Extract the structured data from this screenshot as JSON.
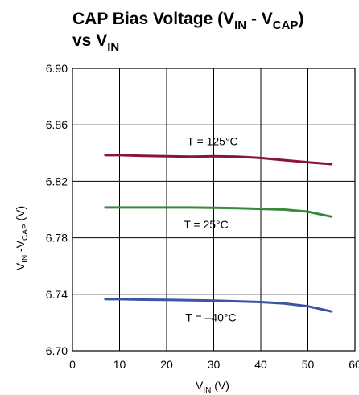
{
  "chart_data": {
    "type": "line",
    "title": {
      "line1_a": "CAP Bias Voltage (V",
      "line1_sub1": "IN",
      "line1_b": " - V",
      "line1_sub2": "CAP",
      "line1_c": ")",
      "line2_a": "vs V",
      "line2_sub": "IN"
    },
    "xlabel": {
      "main": "V",
      "sub": "IN",
      "rest": " (V)"
    },
    "ylabel": {
      "a": "V",
      "sub1": "IN",
      "b": " -V",
      "sub2": "CAP",
      "c": " (V)"
    },
    "xlim": [
      0,
      60
    ],
    "ylim": [
      6.7,
      6.9
    ],
    "xticks": [
      "0",
      "10",
      "20",
      "30",
      "40",
      "50",
      "60"
    ],
    "yticks": [
      "6.70",
      "6.74",
      "6.78",
      "6.82",
      "6.86",
      "6.90"
    ],
    "grid": true,
    "series": [
      {
        "name": "T = 125°C",
        "color": "#8b1538",
        "x": [
          7,
          10,
          15,
          20,
          25,
          30,
          35,
          40,
          45,
          50,
          55
        ],
        "y": [
          6.8385,
          6.8385,
          6.838,
          6.8378,
          6.8375,
          6.8377,
          6.8375,
          6.8365,
          6.835,
          6.8335,
          6.8322
        ]
      },
      {
        "name": "T = 25°C",
        "color": "#3a8a3e",
        "x": [
          7,
          10,
          15,
          20,
          25,
          30,
          35,
          40,
          45,
          50,
          55
        ],
        "y": [
          6.8015,
          6.8015,
          6.8015,
          6.8015,
          6.8015,
          6.8013,
          6.801,
          6.8005,
          6.8,
          6.7985,
          6.795
        ]
      },
      {
        "name": "T = –40°C",
        "color": "#3a55a4",
        "x": [
          7,
          10,
          15,
          20,
          25,
          30,
          35,
          40,
          45,
          50,
          55
        ],
        "y": [
          6.7365,
          6.7365,
          6.7362,
          6.736,
          6.7357,
          6.7355,
          6.735,
          6.7345,
          6.7335,
          6.7315,
          6.7278
        ]
      }
    ]
  }
}
